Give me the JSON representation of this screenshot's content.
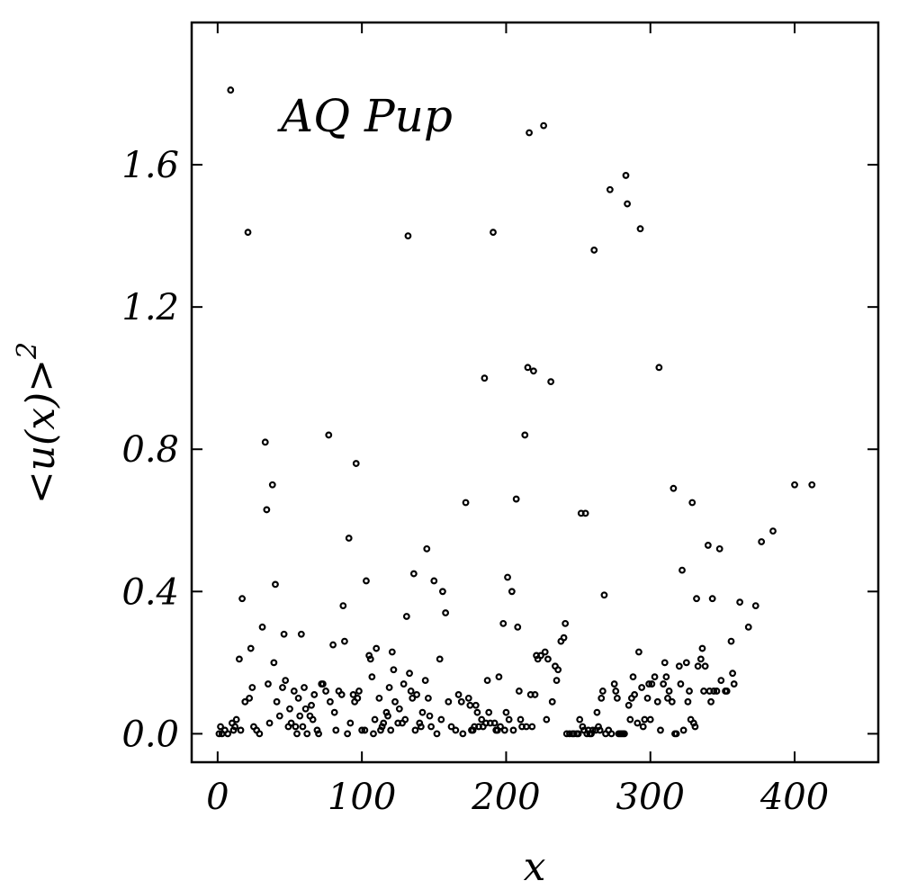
{
  "chart_data": {
    "type": "scatter",
    "annotation": "AQ Pup",
    "xlabel": "x",
    "ylabel": "<u(x)>",
    "ylabel_superscript": "2",
    "xlim": [
      -18,
      458
    ],
    "ylim": [
      -0.08,
      2.0
    ],
    "xticks": [
      0,
      100,
      200,
      300,
      400
    ],
    "xtick_labels": [
      "0",
      "100",
      "200",
      "300",
      "400"
    ],
    "yticks": [
      0.0,
      0.4,
      0.8,
      1.2,
      1.6
    ],
    "ytick_labels": [
      "0.0",
      "0.4",
      "0.8",
      "1.2",
      "1.6"
    ],
    "grid": false,
    "legend": "none",
    "marker": "open-circle",
    "color": "#000000",
    "points": [
      [
        1,
        0.0
      ],
      [
        2,
        0.02
      ],
      [
        3,
        0.0
      ],
      [
        5,
        0.01
      ],
      [
        7,
        0.0
      ],
      [
        9,
        1.81
      ],
      [
        10,
        0.03
      ],
      [
        11,
        0.01
      ],
      [
        12,
        0.02
      ],
      [
        13,
        0.04
      ],
      [
        15,
        0.21
      ],
      [
        16,
        0.01
      ],
      [
        17,
        0.38
      ],
      [
        19,
        0.09
      ],
      [
        21,
        1.41
      ],
      [
        22,
        0.1
      ],
      [
        23,
        0.24
      ],
      [
        24,
        0.13
      ],
      [
        25,
        0.02
      ],
      [
        27,
        0.01
      ],
      [
        29,
        0.0
      ],
      [
        31,
        0.3
      ],
      [
        33,
        0.82
      ],
      [
        34,
        0.63
      ],
      [
        35,
        0.14
      ],
      [
        36,
        0.03
      ],
      [
        38,
        0.7
      ],
      [
        39,
        0.2
      ],
      [
        40,
        0.42
      ],
      [
        41,
        0.09
      ],
      [
        43,
        0.05
      ],
      [
        45,
        0.13
      ],
      [
        46,
        0.28
      ],
      [
        47,
        0.15
      ],
      [
        49,
        0.02
      ],
      [
        50,
        0.07
      ],
      [
        51,
        0.03
      ],
      [
        53,
        0.12
      ],
      [
        54,
        0.02
      ],
      [
        55,
        0.0
      ],
      [
        56,
        0.1
      ],
      [
        57,
        0.05
      ],
      [
        58,
        0.28
      ],
      [
        59,
        0.02
      ],
      [
        60,
        0.13
      ],
      [
        61,
        0.07
      ],
      [
        62,
        0.0
      ],
      [
        64,
        0.05
      ],
      [
        65,
        0.08
      ],
      [
        66,
        0.04
      ],
      [
        67,
        0.11
      ],
      [
        69,
        0.01
      ],
      [
        70,
        0.0
      ],
      [
        72,
        0.14
      ],
      [
        73,
        0.14
      ],
      [
        75,
        0.12
      ],
      [
        77,
        0.84
      ],
      [
        78,
        0.09
      ],
      [
        80,
        0.25
      ],
      [
        81,
        0.06
      ],
      [
        82,
        0.01
      ],
      [
        84,
        0.12
      ],
      [
        86,
        0.11
      ],
      [
        87,
        0.36
      ],
      [
        88,
        0.26
      ],
      [
        90,
        0.0
      ],
      [
        91,
        0.55
      ],
      [
        92,
        0.03
      ],
      [
        94,
        0.11
      ],
      [
        95,
        0.09
      ],
      [
        96,
        0.76
      ],
      [
        97,
        0.1
      ],
      [
        98,
        0.12
      ],
      [
        100,
        0.01
      ],
      [
        102,
        0.01
      ],
      [
        103,
        0.43
      ],
      [
        105,
        0.22
      ],
      [
        106,
        0.21
      ],
      [
        107,
        0.16
      ],
      [
        108,
        0.0
      ],
      [
        109,
        0.04
      ],
      [
        110,
        0.24
      ],
      [
        112,
        0.1
      ],
      [
        113,
        0.01
      ],
      [
        114,
        0.02
      ],
      [
        115,
        0.03
      ],
      [
        117,
        0.06
      ],
      [
        118,
        0.05
      ],
      [
        119,
        0.13
      ],
      [
        120,
        0.01
      ],
      [
        121,
        0.23
      ],
      [
        122,
        0.18
      ],
      [
        123,
        0.09
      ],
      [
        125,
        0.03
      ],
      [
        126,
        0.07
      ],
      [
        128,
        0.03
      ],
      [
        129,
        0.14
      ],
      [
        130,
        0.04
      ],
      [
        131,
        0.33
      ],
      [
        132,
        1.4
      ],
      [
        133,
        0.17
      ],
      [
        134,
        0.12
      ],
      [
        135,
        0.1
      ],
      [
        136,
        0.45
      ],
      [
        137,
        0.01
      ],
      [
        138,
        0.11
      ],
      [
        140,
        0.03
      ],
      [
        141,
        0.02
      ],
      [
        142,
        0.06
      ],
      [
        144,
        0.15
      ],
      [
        145,
        0.52
      ],
      [
        146,
        0.1
      ],
      [
        147,
        0.05
      ],
      [
        148,
        0.02
      ],
      [
        150,
        0.43
      ],
      [
        152,
        0.0
      ],
      [
        154,
        0.21
      ],
      [
        155,
        0.04
      ],
      [
        156,
        0.4
      ],
      [
        158,
        0.34
      ],
      [
        160,
        0.09
      ],
      [
        162,
        0.02
      ],
      [
        165,
        0.01
      ],
      [
        167,
        0.11
      ],
      [
        169,
        0.09
      ],
      [
        170,
        0.0
      ],
      [
        172,
        0.65
      ],
      [
        174,
        0.1
      ],
      [
        175,
        0.08
      ],
      [
        176,
        0.01
      ],
      [
        177,
        0.01
      ],
      [
        178,
        0.02
      ],
      [
        179,
        0.08
      ],
      [
        180,
        0.06
      ],
      [
        181,
        0.02
      ],
      [
        183,
        0.04
      ],
      [
        184,
        0.02
      ],
      [
        185,
        1.0
      ],
      [
        186,
        0.03
      ],
      [
        187,
        0.15
      ],
      [
        188,
        0.06
      ],
      [
        189,
        0.03
      ],
      [
        191,
        1.41
      ],
      [
        192,
        0.03
      ],
      [
        193,
        0.01
      ],
      [
        194,
        0.01
      ],
      [
        195,
        0.16
      ],
      [
        196,
        0.02
      ],
      [
        198,
        0.31
      ],
      [
        199,
        0.01
      ],
      [
        200,
        0.06
      ],
      [
        201,
        0.44
      ],
      [
        202,
        0.04
      ],
      [
        204,
        0.4
      ],
      [
        205,
        0.01
      ],
      [
        207,
        0.66
      ],
      [
        208,
        0.3
      ],
      [
        209,
        0.12
      ],
      [
        210,
        0.04
      ],
      [
        211,
        0.02
      ],
      [
        213,
        0.84
      ],
      [
        214,
        0.02
      ],
      [
        215,
        1.03
      ],
      [
        216,
        1.69
      ],
      [
        217,
        0.11
      ],
      [
        218,
        0.02
      ],
      [
        219,
        1.02
      ],
      [
        220,
        0.11
      ],
      [
        221,
        0.22
      ],
      [
        222,
        0.21
      ],
      [
        224,
        0.22
      ],
      [
        226,
        1.71
      ],
      [
        227,
        0.23
      ],
      [
        228,
        0.04
      ],
      [
        229,
        0.21
      ],
      [
        231,
        0.99
      ],
      [
        232,
        0.09
      ],
      [
        234,
        0.19
      ],
      [
        235,
        0.15
      ],
      [
        236,
        0.18
      ],
      [
        238,
        0.26
      ],
      [
        240,
        0.27
      ],
      [
        241,
        0.31
      ],
      [
        242,
        0.0
      ],
      [
        244,
        0.0
      ],
      [
        246,
        0.0
      ],
      [
        247,
        0.0
      ],
      [
        249,
        0.0
      ],
      [
        250,
        0.0
      ],
      [
        251,
        0.04
      ],
      [
        252,
        0.62
      ],
      [
        253,
        0.02
      ],
      [
        254,
        0.01
      ],
      [
        255,
        0.62
      ],
      [
        256,
        0.0
      ],
      [
        257,
        0.01
      ],
      [
        258,
        0.0
      ],
      [
        259,
        0.0
      ],
      [
        260,
        0.01
      ],
      [
        261,
        1.36
      ],
      [
        262,
        0.01
      ],
      [
        263,
        0.06
      ],
      [
        264,
        0.02
      ],
      [
        265,
        0.01
      ],
      [
        266,
        0.1
      ],
      [
        267,
        0.12
      ],
      [
        268,
        0.39
      ],
      [
        269,
        0.0
      ],
      [
        271,
        0.01
      ],
      [
        272,
        1.53
      ],
      [
        273,
        0.0
      ],
      [
        275,
        0.14
      ],
      [
        276,
        0.12
      ],
      [
        277,
        0.1
      ],
      [
        278,
        0.0
      ],
      [
        279,
        0.0
      ],
      [
        280,
        0.0
      ],
      [
        281,
        0.0
      ],
      [
        282,
        0.0
      ],
      [
        283,
        1.57
      ],
      [
        284,
        1.49
      ],
      [
        285,
        0.08
      ],
      [
        286,
        0.04
      ],
      [
        287,
        0.1
      ],
      [
        288,
        0.16
      ],
      [
        289,
        0.11
      ],
      [
        291,
        0.03
      ],
      [
        292,
        0.23
      ],
      [
        293,
        1.42
      ],
      [
        294,
        0.13
      ],
      [
        295,
        0.02
      ],
      [
        296,
        0.04
      ],
      [
        298,
        0.1
      ],
      [
        299,
        0.14
      ],
      [
        300,
        0.04
      ],
      [
        301,
        0.14
      ],
      [
        303,
        0.16
      ],
      [
        305,
        0.09
      ],
      [
        306,
        1.03
      ],
      [
        307,
        0.01
      ],
      [
        309,
        0.14
      ],
      [
        310,
        0.2
      ],
      [
        311,
        0.16
      ],
      [
        312,
        0.1
      ],
      [
        313,
        0.12
      ],
      [
        315,
        0.09
      ],
      [
        316,
        0.69
      ],
      [
        317,
        0.0
      ],
      [
        318,
        0.0
      ],
      [
        320,
        0.19
      ],
      [
        321,
        0.14
      ],
      [
        322,
        0.46
      ],
      [
        323,
        0.01
      ],
      [
        325,
        0.2
      ],
      [
        326,
        0.09
      ],
      [
        327,
        0.12
      ],
      [
        328,
        0.04
      ],
      [
        329,
        0.65
      ],
      [
        330,
        0.03
      ],
      [
        331,
        0.02
      ],
      [
        332,
        0.38
      ],
      [
        333,
        0.19
      ],
      [
        335,
        0.21
      ],
      [
        336,
        0.24
      ],
      [
        337,
        0.12
      ],
      [
        338,
        0.19
      ],
      [
        340,
        0.53
      ],
      [
        341,
        0.12
      ],
      [
        342,
        0.09
      ],
      [
        343,
        0.38
      ],
      [
        344,
        0.12
      ],
      [
        346,
        0.12
      ],
      [
        348,
        0.52
      ],
      [
        349,
        0.15
      ],
      [
        352,
        0.12
      ],
      [
        353,
        0.12
      ],
      [
        356,
        0.26
      ],
      [
        357,
        0.17
      ],
      [
        358,
        0.14
      ],
      [
        362,
        0.37
      ],
      [
        368,
        0.3
      ],
      [
        373,
        0.36
      ],
      [
        377,
        0.54
      ],
      [
        385,
        0.57
      ],
      [
        400,
        0.7
      ],
      [
        412,
        0.7
      ]
    ]
  }
}
